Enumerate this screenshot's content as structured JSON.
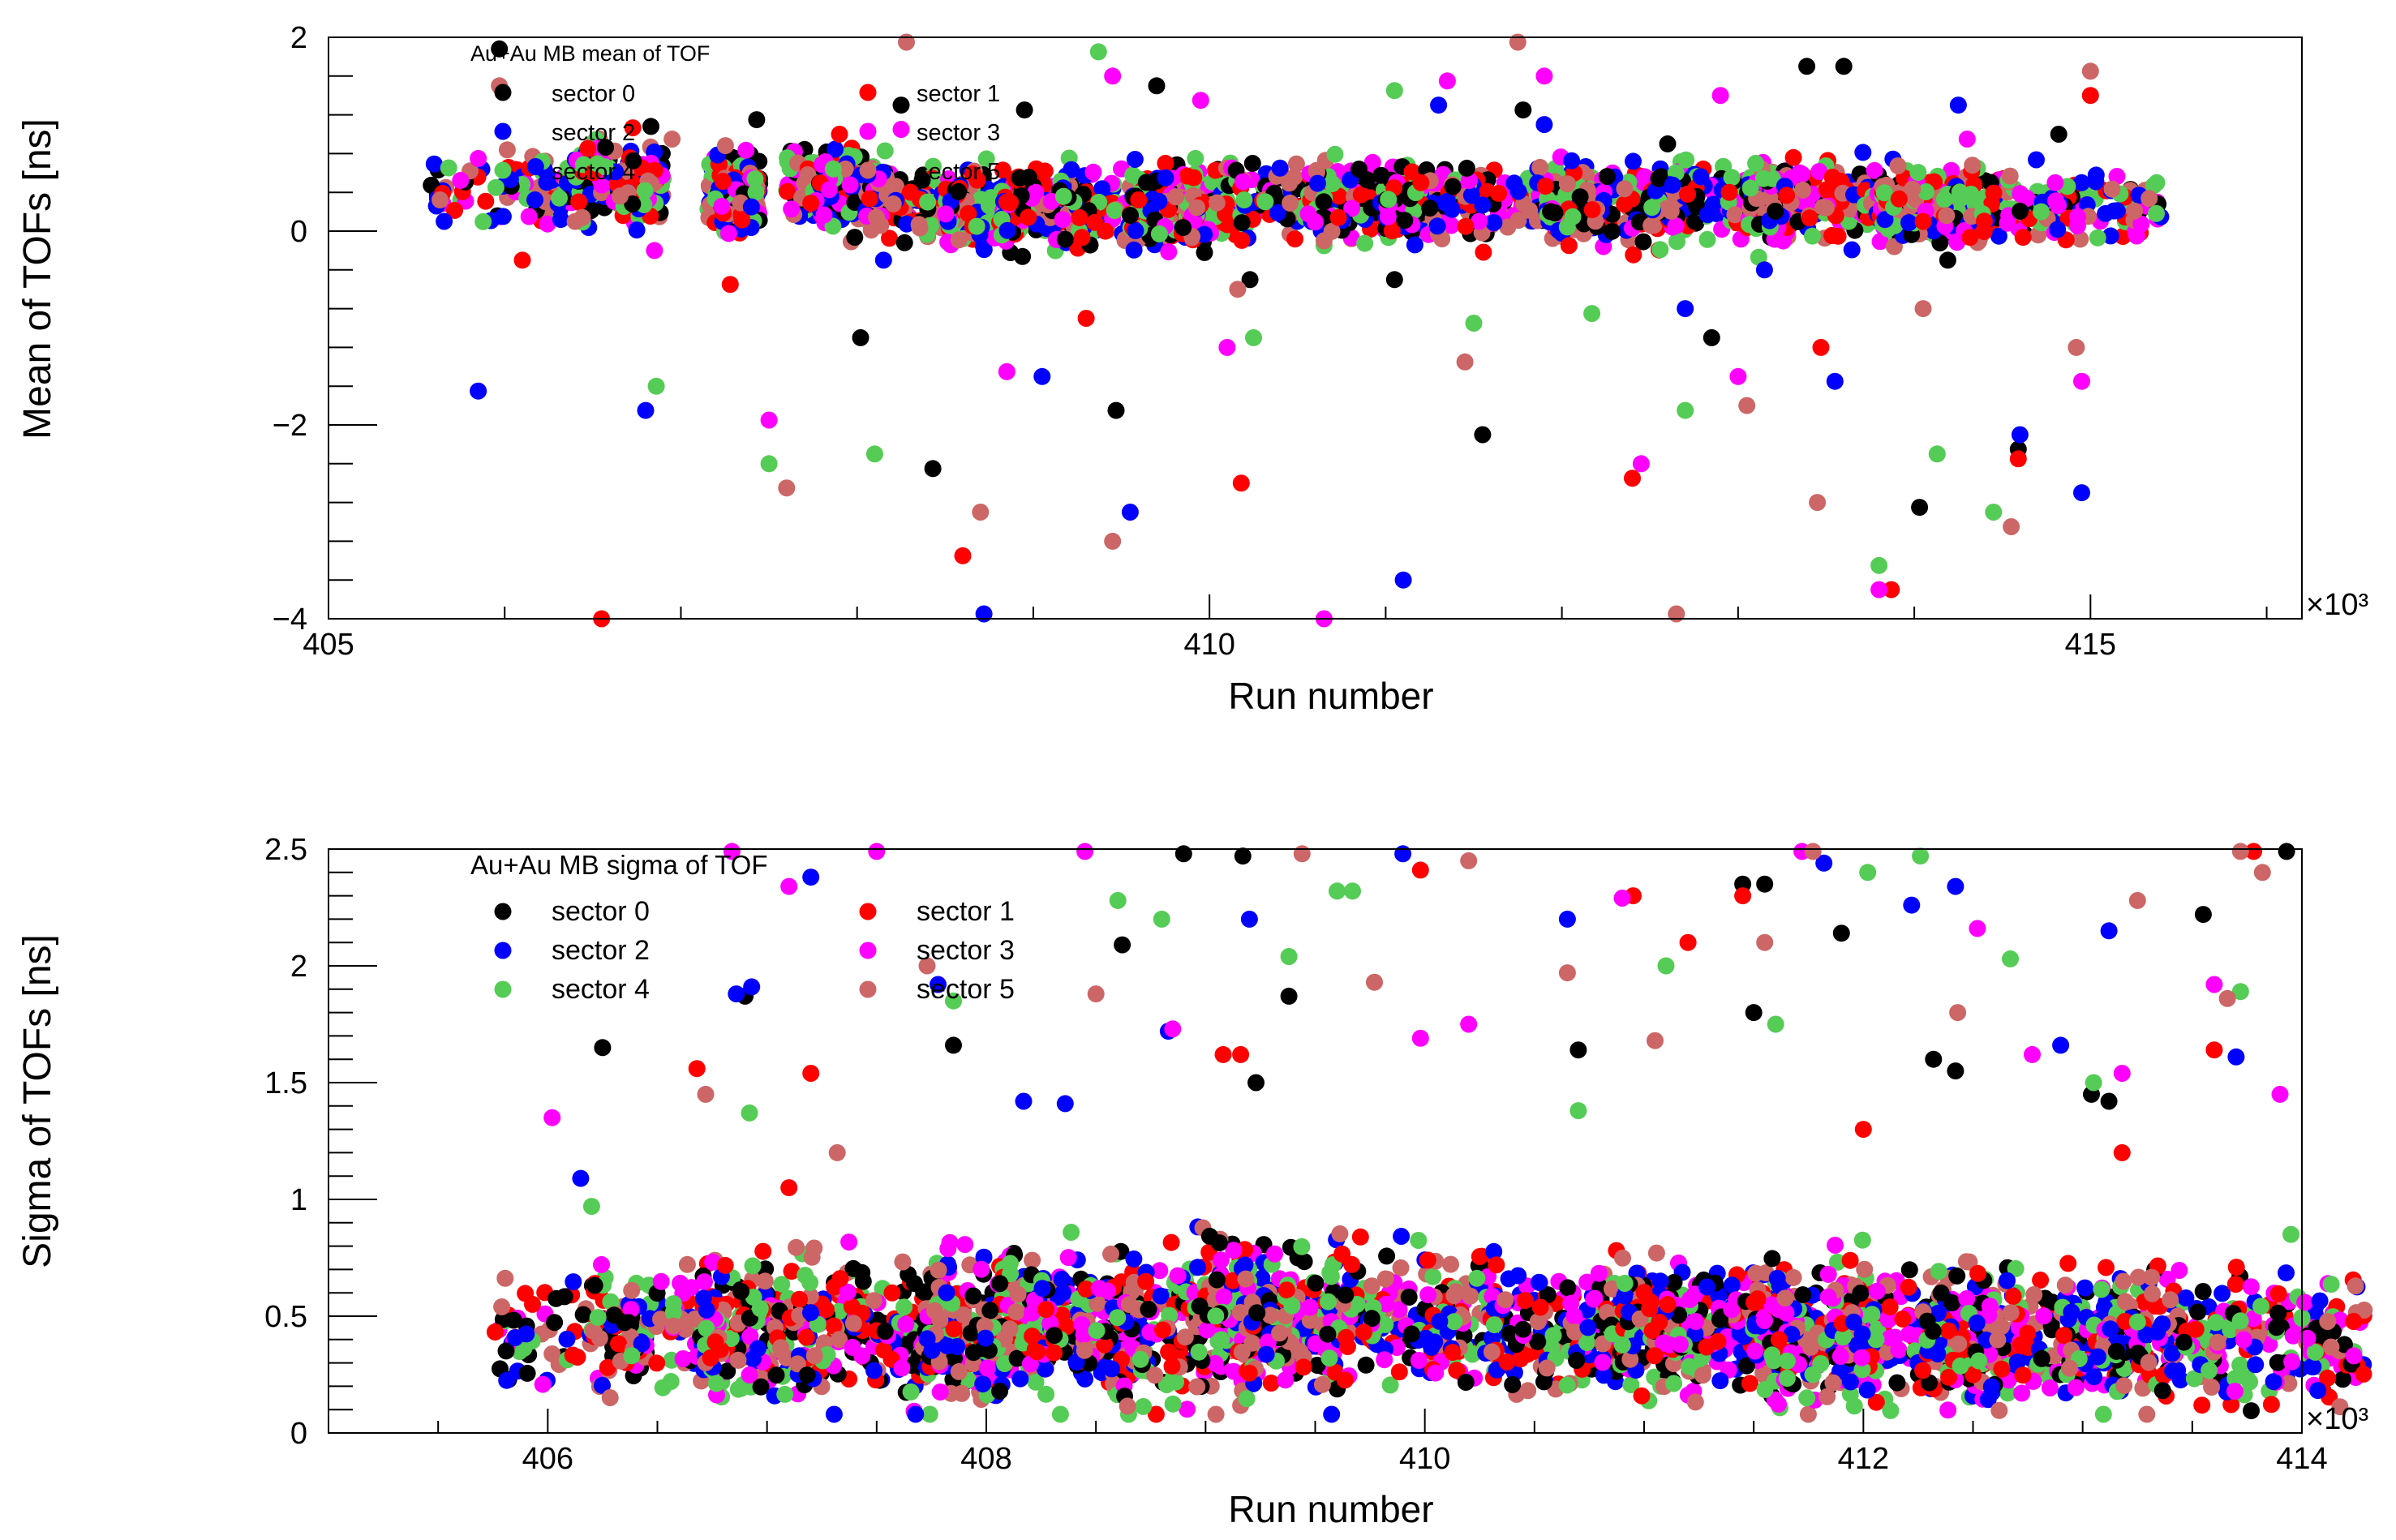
{
  "chart_data": [
    {
      "type": "scatter",
      "title": "Au+Au MB mean of TOF",
      "xlabel": "Run number",
      "ylabel": "Mean of TOFs [ns]",
      "x_multiplier": "×10³",
      "xlim": [
        405,
        416.2
      ],
      "ylim": [
        -4,
        2
      ],
      "xticks": [
        405,
        410,
        415
      ],
      "xtick_labels": [
        "405",
        "410",
        "415"
      ],
      "yticks": [
        -4,
        -2,
        0,
        2
      ],
      "ytick_labels": [
        "−4",
        "−2",
        "0",
        "2"
      ],
      "legend_position": "top-left",
      "series": [
        {
          "name": "sector 0",
          "color": "#000000",
          "points": [
            [
              405.97,
              1.88
            ],
            [
              406.83,
              1.08
            ],
            [
              407.43,
              1.15
            ],
            [
              408.02,
              -1.1
            ],
            [
              408.25,
              1.3
            ],
            [
              408.43,
              -2.45
            ],
            [
              408.95,
              1.25
            ],
            [
              409.47,
              -1.85
            ],
            [
              409.7,
              1.5
            ],
            [
              410.23,
              -0.5
            ],
            [
              411.05,
              -0.5
            ],
            [
              411.55,
              -2.1
            ],
            [
              411.78,
              1.25
            ],
            [
              412.6,
              0.9
            ],
            [
              412.85,
              -1.1
            ],
            [
              413.39,
              1.7
            ],
            [
              413.6,
              1.7
            ],
            [
              414.03,
              -2.85
            ],
            [
              414.19,
              -0.3
            ],
            [
              414.59,
              -2.25
            ],
            [
              414.82,
              1.0
            ]
          ]
        },
        {
          "name": "sector 1",
          "color": "#ff0000",
          "points": [
            [
              406.1,
              -0.3
            ],
            [
              406.55,
              -4.0
            ],
            [
              407.28,
              -0.55
            ],
            [
              407.9,
              1.0
            ],
            [
              408.6,
              -3.35
            ],
            [
              408.85,
              0.3
            ],
            [
              409.3,
              -0.9
            ],
            [
              409.75,
              0.7
            ],
            [
              410.18,
              -2.6
            ],
            [
              411.2,
              0.5
            ],
            [
              412.4,
              -2.55
            ],
            [
              412.95,
              0.4
            ],
            [
              413.47,
              -1.2
            ],
            [
              413.87,
              -3.7
            ],
            [
              414.05,
              0.1
            ],
            [
              414.59,
              -2.35
            ],
            [
              415.0,
              1.4
            ]
          ]
        },
        {
          "name": "sector 2",
          "color": "#0000ff",
          "points": [
            [
              405.85,
              -1.65
            ],
            [
              406.8,
              -1.85
            ],
            [
              407.4,
              0.25
            ],
            [
              408.15,
              -0.3
            ],
            [
              408.72,
              -3.95
            ],
            [
              409.05,
              -1.5
            ],
            [
              409.55,
              -2.9
            ],
            [
              409.75,
              0.55
            ],
            [
              410.4,
              0.65
            ],
            [
              411.1,
              -3.6
            ],
            [
              411.3,
              1.3
            ],
            [
              411.9,
              1.1
            ],
            [
              412.7,
              -0.8
            ],
            [
              413.15,
              -0.4
            ],
            [
              413.55,
              -1.55
            ],
            [
              414.25,
              1.3
            ],
            [
              414.6,
              -2.1
            ],
            [
              414.95,
              -2.7
            ]
          ]
        },
        {
          "name": "sector 3",
          "color": "#ff00ff",
          "points": [
            [
              405.85,
              0.75
            ],
            [
              406.85,
              -0.2
            ],
            [
              407.5,
              -1.95
            ],
            [
              408.25,
              1.05
            ],
            [
              408.85,
              -1.45
            ],
            [
              409.45,
              1.6
            ],
            [
              409.95,
              1.35
            ],
            [
              410.1,
              -1.2
            ],
            [
              410.65,
              -4.0
            ],
            [
              411.35,
              1.55
            ],
            [
              411.9,
              1.6
            ],
            [
              412.45,
              -2.4
            ],
            [
              412.9,
              1.4
            ],
            [
              413.0,
              -1.5
            ],
            [
              413.35,
              0.6
            ],
            [
              413.8,
              -3.7
            ],
            [
              414.3,
              0.95
            ],
            [
              414.8,
              0.5
            ],
            [
              414.95,
              -1.55
            ]
          ]
        },
        {
          "name": "sector 4",
          "color": "#55cc55",
          "points": [
            [
              405.95,
              0.45
            ],
            [
              406.86,
              -1.6
            ],
            [
              407.5,
              -2.4
            ],
            [
              408.1,
              -2.3
            ],
            [
              408.4,
              0.3
            ],
            [
              409.37,
              1.85
            ],
            [
              409.92,
              0.75
            ],
            [
              410.25,
              -1.1
            ],
            [
              411.05,
              1.45
            ],
            [
              411.5,
              -0.95
            ],
            [
              412.17,
              -0.85
            ],
            [
              412.7,
              -1.85
            ],
            [
              413.1,
              0.7
            ],
            [
              413.8,
              -3.45
            ],
            [
              414.13,
              -2.3
            ],
            [
              414.45,
              -2.9
            ],
            [
              414.72,
              0.2
            ]
          ]
        },
        {
          "name": "sector 5",
          "color": "#cd6666",
          "points": [
            [
              405.97,
              1.5
            ],
            [
              406.4,
              0.1
            ],
            [
              406.95,
              0.95
            ],
            [
              407.6,
              -2.65
            ],
            [
              408.28,
              1.95
            ],
            [
              408.7,
              -2.9
            ],
            [
              409.45,
              -3.2
            ],
            [
              410.16,
              -0.6
            ],
            [
              410.65,
              -0.1
            ],
            [
              411.45,
              -1.35
            ],
            [
              411.75,
              1.95
            ],
            [
              412.65,
              -3.95
            ],
            [
              413.05,
              -1.8
            ],
            [
              413.45,
              -2.8
            ],
            [
              414.05,
              -0.8
            ],
            [
              414.55,
              -3.05
            ],
            [
              414.92,
              -1.2
            ],
            [
              415.0,
              1.65
            ]
          ]
        }
      ]
    },
    {
      "type": "scatter",
      "title": "Au+Au MB sigma of TOF",
      "xlabel": "Run number",
      "ylabel": "Sigma of TOFs [ns]",
      "x_multiplier": "×10³",
      "xlim": [
        405,
        414
      ],
      "ylim": [
        0,
        2.5
      ],
      "xticks": [
        406,
        408,
        410,
        412,
        414
      ],
      "xtick_labels": [
        "406",
        "408",
        "410",
        "412",
        "414"
      ],
      "yticks": [
        0,
        0.5,
        1,
        1.5,
        2,
        2.5
      ],
      "ytick_labels": [
        "0",
        "0.5",
        "1",
        "1.5",
        "2",
        "2.5"
      ],
      "legend_position": "top-left",
      "series": [
        {
          "name": "sector 0",
          "color": "#000000",
          "points": [
            [
              406.25,
              1.65
            ],
            [
              406.9,
              1.87
            ],
            [
              407.85,
              1.66
            ],
            [
              408.62,
              2.09
            ],
            [
              408.9,
              2.48
            ],
            [
              409.17,
              2.47
            ],
            [
              409.38,
              1.87
            ],
            [
              409.23,
              1.5
            ],
            [
              410.7,
              1.64
            ],
            [
              411.45,
              2.35
            ],
            [
              411.55,
              2.35
            ],
            [
              411.5,
              1.8
            ],
            [
              411.9,
              2.14
            ],
            [
              412.32,
              1.6
            ],
            [
              412.42,
              1.55
            ],
            [
              413.04,
              1.45
            ],
            [
              413.12,
              1.42
            ],
            [
              413.55,
              2.22
            ],
            [
              413.93,
              2.49
            ]
          ]
        },
        {
          "name": "sector 1",
          "color": "#ff0000",
          "points": [
            [
              406.68,
              1.56
            ],
            [
              407.1,
              1.05
            ],
            [
              407.2,
              1.54
            ],
            [
              409.08,
              1.62
            ],
            [
              409.16,
              1.62
            ],
            [
              409.98,
              2.41
            ],
            [
              410.95,
              2.3
            ],
            [
              411.2,
              2.1
            ],
            [
              411.45,
              2.3
            ],
            [
              412.0,
              1.3
            ],
            [
              413.6,
              1.64
            ],
            [
              413.78,
              2.49
            ],
            [
              413.18,
              1.2
            ]
          ]
        },
        {
          "name": "sector 2",
          "color": "#0000ff",
          "points": [
            [
              406.15,
              1.09
            ],
            [
              406.86,
              1.88
            ],
            [
              406.93,
              1.91
            ],
            [
              407.2,
              2.38
            ],
            [
              407.78,
              1.92
            ],
            [
              408.17,
              1.42
            ],
            [
              408.36,
              1.41
            ],
            [
              408.83,
              1.72
            ],
            [
              409.2,
              2.2
            ],
            [
              409.9,
              2.48
            ],
            [
              410.65,
              2.2
            ],
            [
              411.82,
              2.44
            ],
            [
              412.22,
              2.26
            ],
            [
              412.42,
              2.34
            ],
            [
              412.9,
              1.66
            ],
            [
              413.12,
              2.15
            ],
            [
              413.7,
              1.61
            ]
          ]
        },
        {
          "name": "sector 3",
          "color": "#ff00ff",
          "points": [
            [
              406.02,
              1.35
            ],
            [
              406.84,
              2.49
            ],
            [
              407.1,
              2.34
            ],
            [
              407.5,
              2.49
            ],
            [
              408.45,
              2.49
            ],
            [
              408.85,
              1.73
            ],
            [
              409.98,
              1.69
            ],
            [
              410.2,
              1.75
            ],
            [
              410.9,
              2.29
            ],
            [
              411.72,
              2.49
            ],
            [
              412.52,
              2.16
            ],
            [
              412.77,
              1.62
            ],
            [
              413.18,
              1.54
            ],
            [
              413.6,
              1.92
            ],
            [
              413.9,
              1.45
            ]
          ]
        },
        {
          "name": "sector 4",
          "color": "#55cc55",
          "points": [
            [
              406.2,
              0.97
            ],
            [
              406.92,
              1.37
            ],
            [
              407.85,
              1.85
            ],
            [
              408.6,
              2.28
            ],
            [
              408.8,
              2.2
            ],
            [
              409.6,
              2.32
            ],
            [
              409.67,
              2.32
            ],
            [
              409.38,
              2.04
            ],
            [
              410.7,
              1.38
            ],
            [
              411.1,
              2.0
            ],
            [
              411.6,
              1.75
            ],
            [
              412.02,
              2.4
            ],
            [
              412.26,
              2.47
            ],
            [
              412.67,
              2.03
            ],
            [
              413.05,
              1.5
            ],
            [
              413.72,
              1.89
            ],
            [
              413.95,
              0.85
            ]
          ]
        },
        {
          "name": "sector 5",
          "color": "#cd6666",
          "points": [
            [
              406.72,
              1.45
            ],
            [
              407.32,
              1.2
            ],
            [
              407.73,
              2.0
            ],
            [
              408.5,
              1.88
            ],
            [
              409.44,
              2.48
            ],
            [
              409.77,
              1.93
            ],
            [
              410.2,
              2.45
            ],
            [
              410.65,
              1.97
            ],
            [
              411.05,
              1.68
            ],
            [
              411.55,
              2.1
            ],
            [
              411.77,
              2.49
            ],
            [
              412.43,
              1.8
            ],
            [
              413.25,
              2.28
            ],
            [
              413.72,
              2.49
            ],
            [
              413.82,
              2.4
            ],
            [
              413.66,
              1.86
            ]
          ]
        }
      ]
    }
  ]
}
